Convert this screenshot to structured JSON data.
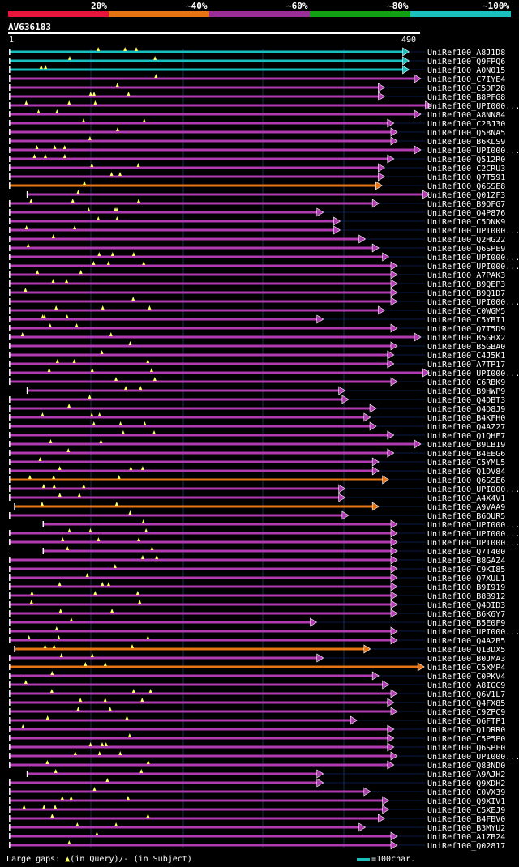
{
  "legend": {
    "segments": [
      {
        "label": "20%",
        "color": "#e8153a"
      },
      {
        "label": "~40%",
        "color": "#e67314"
      },
      {
        "label": "~60%",
        "color": "#9a2d96"
      },
      {
        "label": "~80%",
        "color": "#13a013"
      },
      {
        "label": "~100%",
        "color": "#19c0c0"
      }
    ]
  },
  "query": {
    "id": "AV636183",
    "start": "1",
    "end": "490"
  },
  "colors": {
    "cyan": "#19c0c0",
    "orange": "#e67314",
    "purple": "#b03ab0",
    "gap": "#ffff66",
    "grid": "#1a2a5a",
    "navy": "#0a1a4a"
  },
  "hits": [
    {
      "name": "UniRef100_A8J1D8",
      "color": "cyan",
      "s": 2,
      "e": 476
    },
    {
      "name": "UniRef100_Q9FPQ6",
      "color": "cyan",
      "s": 2,
      "e": 476
    },
    {
      "name": "UniRef100_A0N015",
      "color": "cyan",
      "s": 2,
      "e": 476
    },
    {
      "name": "UniRef100_C7IYE4",
      "color": "purple",
      "s": 2,
      "e": 490
    },
    {
      "name": "UniRef100_C5DP28",
      "color": "purple",
      "s": 2,
      "e": 447
    },
    {
      "name": "UniRef100_B8PFG8",
      "color": "purple",
      "s": 2,
      "e": 447
    },
    {
      "name": "UniRef100_UPI000...",
      "color": "purple",
      "s": 2,
      "e": 503
    },
    {
      "name": "UniRef100_A8NN84",
      "color": "purple",
      "s": 2,
      "e": 490
    },
    {
      "name": "UniRef100_C2BJ30",
      "color": "purple",
      "s": 2,
      "e": 458
    },
    {
      "name": "UniRef100_Q58NA5",
      "color": "purple",
      "s": 2,
      "e": 462
    },
    {
      "name": "UniRef100_B6KLS9",
      "color": "purple",
      "s": 2,
      "e": 462
    },
    {
      "name": "UniRef100_UPI000...",
      "color": "purple",
      "s": 2,
      "e": 490
    },
    {
      "name": "UniRef100_Q512R0",
      "color": "purple",
      "s": 2,
      "e": 458
    },
    {
      "name": "UniRef100_C2CRU3",
      "color": "purple",
      "s": 2,
      "e": 447
    },
    {
      "name": "UniRef100_Q7T591",
      "color": "purple",
      "s": 2,
      "e": 447
    },
    {
      "name": "UniRef100_Q6SSE8",
      "color": "orange",
      "s": 2,
      "e": 444
    },
    {
      "name": "UniRef100_Q01ZF3",
      "color": "purple",
      "s": 23,
      "e": 500
    },
    {
      "name": "UniRef100_B9QFG7",
      "color": "purple",
      "s": 2,
      "e": 440
    },
    {
      "name": "UniRef100_Q4P876",
      "color": "purple",
      "s": 2,
      "e": 374
    },
    {
      "name": "UniRef100_C5DNK9",
      "color": "purple",
      "s": 2,
      "e": 394
    },
    {
      "name": "UniRef100_UPI000...",
      "color": "purple",
      "s": 2,
      "e": 394
    },
    {
      "name": "UniRef100_Q2HG22",
      "color": "purple",
      "s": 2,
      "e": 424
    },
    {
      "name": "UniRef100_Q6SPE9",
      "color": "purple",
      "s": 2,
      "e": 440
    },
    {
      "name": "UniRef100_UPI000...",
      "color": "purple",
      "s": 2,
      "e": 452
    },
    {
      "name": "UniRef100_UPI000...",
      "color": "purple",
      "s": 2,
      "e": 462
    },
    {
      "name": "UniRef100_A7PAK3",
      "color": "purple",
      "s": 2,
      "e": 462
    },
    {
      "name": "UniRef100_B9QEP3",
      "color": "purple",
      "s": 2,
      "e": 462
    },
    {
      "name": "UniRef100_B9Q1D7",
      "color": "purple",
      "s": 2,
      "e": 462
    },
    {
      "name": "UniRef100_UPI000...",
      "color": "purple",
      "s": 2,
      "e": 462
    },
    {
      "name": "UniRef100_C0WGM5",
      "color": "purple",
      "s": 2,
      "e": 447
    },
    {
      "name": "UniRef100_C5YBI1",
      "color": "purple",
      "s": 2,
      "e": 374
    },
    {
      "name": "UniRef100_Q7T5D9",
      "color": "purple",
      "s": 2,
      "e": 462
    },
    {
      "name": "UniRef100_B5GHX2",
      "color": "purple",
      "s": 2,
      "e": 490
    },
    {
      "name": "UniRef100_B5GBA0",
      "color": "purple",
      "s": 2,
      "e": 462
    },
    {
      "name": "UniRef100_C4J5K1",
      "color": "purple",
      "s": 2,
      "e": 458
    },
    {
      "name": "UniRef100_A7TP17",
      "color": "purple",
      "s": 2,
      "e": 458
    },
    {
      "name": "UniRef100_UPI000...",
      "color": "purple",
      "s": 2,
      "e": 500
    },
    {
      "name": "UniRef100_C6RBK9",
      "color": "purple",
      "s": 2,
      "e": 462
    },
    {
      "name": "UniRef100_B9HWP9",
      "color": "purple",
      "s": 23,
      "e": 400
    },
    {
      "name": "UniRef100_Q4DBT3",
      "color": "purple",
      "s": 2,
      "e": 404
    },
    {
      "name": "UniRef100_Q4D8J9",
      "color": "purple",
      "s": 2,
      "e": 437
    },
    {
      "name": "UniRef100_B4KFH0",
      "color": "purple",
      "s": 2,
      "e": 430
    },
    {
      "name": "UniRef100_Q4AZ27",
      "color": "purple",
      "s": 2,
      "e": 437
    },
    {
      "name": "UniRef100_Q1QHE7",
      "color": "purple",
      "s": 2,
      "e": 458
    },
    {
      "name": "UniRef100_B9LB19",
      "color": "purple",
      "s": 2,
      "e": 490
    },
    {
      "name": "UniRef100_B4EEG6",
      "color": "purple",
      "s": 2,
      "e": 458
    },
    {
      "name": "UniRef100_C5YML5",
      "color": "purple",
      "s": 2,
      "e": 440
    },
    {
      "name": "UniRef100_Q1DV84",
      "color": "purple",
      "s": 2,
      "e": 440
    },
    {
      "name": "UniRef100_Q6SSE6",
      "color": "orange",
      "s": 2,
      "e": 452
    },
    {
      "name": "UniRef100_UPI000...",
      "color": "purple",
      "s": 2,
      "e": 400
    },
    {
      "name": "UniRef100_A4X4V1",
      "color": "purple",
      "s": 2,
      "e": 400
    },
    {
      "name": "UniRef100_A9VAA9",
      "color": "orange",
      "s": 8,
      "e": 440
    },
    {
      "name": "UniRef100_B6QUR5",
      "color": "purple",
      "s": 2,
      "e": 404
    },
    {
      "name": "UniRef100_UPI000...",
      "color": "purple",
      "s": 42,
      "e": 462
    },
    {
      "name": "UniRef100_UPI000...",
      "color": "purple",
      "s": 2,
      "e": 462
    },
    {
      "name": "UniRef100_UPI000...",
      "color": "purple",
      "s": 2,
      "e": 462
    },
    {
      "name": "UniRef100_Q7T400",
      "color": "purple",
      "s": 42,
      "e": 462
    },
    {
      "name": "UniRef100_B8GAZ4",
      "color": "purple",
      "s": 2,
      "e": 462
    },
    {
      "name": "UniRef100_C9KI85",
      "color": "purple",
      "s": 2,
      "e": 462
    },
    {
      "name": "UniRef100_Q7XUL1",
      "color": "purple",
      "s": 2,
      "e": 462
    },
    {
      "name": "UniRef100_B9I919",
      "color": "purple",
      "s": 2,
      "e": 462
    },
    {
      "name": "UniRef100_B8B912",
      "color": "purple",
      "s": 2,
      "e": 462
    },
    {
      "name": "UniRef100_Q4DID3",
      "color": "purple",
      "s": 2,
      "e": 462
    },
    {
      "name": "UniRef100_B6K6Y7",
      "color": "purple",
      "s": 2,
      "e": 462
    },
    {
      "name": "UniRef100_B5E0F9",
      "color": "purple",
      "s": 2,
      "e": 366
    },
    {
      "name": "UniRef100_UPI000...",
      "color": "purple",
      "s": 2,
      "e": 462
    },
    {
      "name": "UniRef100_Q4A2B5",
      "color": "purple",
      "s": 2,
      "e": 462
    },
    {
      "name": "UniRef100_Q13DX5",
      "color": "orange",
      "s": 8,
      "e": 430
    },
    {
      "name": "UniRef100_B0JMA3",
      "color": "purple",
      "s": 2,
      "e": 374
    },
    {
      "name": "UniRef100_C5XMP4",
      "color": "orange",
      "s": 2,
      "e": 494
    },
    {
      "name": "UniRef100_C0PKV4",
      "color": "purple",
      "s": 2,
      "e": 440
    },
    {
      "name": "UniRef100_A8IGC9",
      "color": "purple",
      "s": 2,
      "e": 452
    },
    {
      "name": "UniRef100_Q6V1L7",
      "color": "purple",
      "s": 2,
      "e": 462
    },
    {
      "name": "UniRef100_Q4FX85",
      "color": "purple",
      "s": 2,
      "e": 458
    },
    {
      "name": "UniRef100_C9ZPC9",
      "color": "purple",
      "s": 2,
      "e": 462
    },
    {
      "name": "UniRef100_Q6FTP1",
      "color": "purple",
      "s": 2,
      "e": 414
    },
    {
      "name": "UniRef100_Q1DRR0",
      "color": "purple",
      "s": 2,
      "e": 458
    },
    {
      "name": "UniRef100_C5P5P0",
      "color": "purple",
      "s": 2,
      "e": 458
    },
    {
      "name": "UniRef100_Q6SPF0",
      "color": "purple",
      "s": 2,
      "e": 458
    },
    {
      "name": "UniRef100_UPI000...",
      "color": "purple",
      "s": 2,
      "e": 462
    },
    {
      "name": "UniRef100_Q83ND0",
      "color": "purple",
      "s": 2,
      "e": 458
    },
    {
      "name": "UniRef100_A9AJH2",
      "color": "purple",
      "s": 23,
      "e": 374
    },
    {
      "name": "UniRef100_Q9XDH2",
      "color": "purple",
      "s": 2,
      "e": 374
    },
    {
      "name": "UniRef100_C0VX39",
      "color": "purple",
      "s": 2,
      "e": 430
    },
    {
      "name": "UniRef100_Q9XIV1",
      "color": "purple",
      "s": 2,
      "e": 452
    },
    {
      "name": "UniRef100_C5XEJ9",
      "color": "purple",
      "s": 2,
      "e": 452
    },
    {
      "name": "UniRef100_B4FBV0",
      "color": "purple",
      "s": 2,
      "e": 447
    },
    {
      "name": "UniRef100_B3MYU2",
      "color": "purple",
      "s": 2,
      "e": 424
    },
    {
      "name": "UniRef100_A1ZB24",
      "color": "purple",
      "s": 2,
      "e": 462
    },
    {
      "name": "UniRef100_Q02817",
      "color": "purple",
      "s": 2,
      "e": 462
    }
  ],
  "footer": {
    "large_gaps": "Large gaps:",
    "in_query": "(in Query)/",
    "dash": "-",
    "in_subject": " (in Subject)",
    "scale_label": "=100char."
  }
}
